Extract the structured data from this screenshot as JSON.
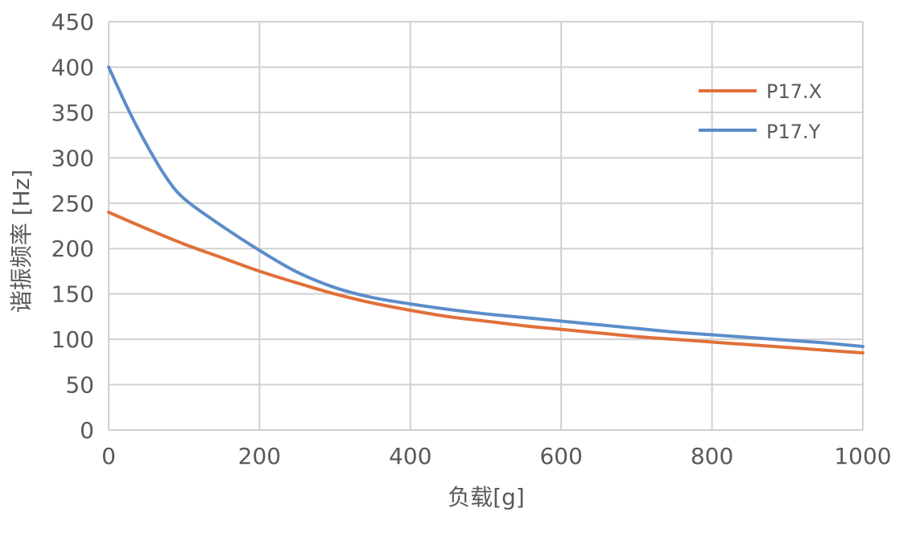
{
  "chart_data": {
    "type": "line",
    "title": "",
    "xlabel": "负载[g]",
    "ylabel": "谐振频率 [Hz]",
    "xlim": [
      0,
      1000
    ],
    "ylim": [
      0,
      450
    ],
    "xticks": [
      0,
      200,
      400,
      600,
      800,
      1000
    ],
    "yticks": [
      0,
      50,
      100,
      150,
      200,
      250,
      300,
      350,
      400,
      450
    ],
    "grid": true,
    "legend_position": "top-right",
    "series": [
      {
        "name": "P17.X",
        "color": "#E0703A",
        "x": [
          0,
          50,
          100,
          150,
          200,
          250,
          300,
          350,
          400,
          450,
          500,
          550,
          600,
          650,
          700,
          750,
          800,
          850,
          900,
          950,
          1000
        ],
        "y": [
          240,
          222,
          205,
          190,
          175,
          162,
          150,
          140,
          132,
          125,
          120,
          115,
          111,
          107,
          103,
          100,
          97,
          94,
          91,
          88,
          85
        ]
      },
      {
        "name": "P17.Y",
        "color": "#5B8DC9",
        "x": [
          0,
          25,
          50,
          75,
          100,
          150,
          200,
          250,
          300,
          350,
          400,
          450,
          500,
          550,
          600,
          650,
          700,
          750,
          800,
          850,
          900,
          950,
          1000
        ],
        "y": [
          400,
          355,
          315,
          280,
          255,
          225,
          198,
          174,
          157,
          146,
          139,
          133,
          128,
          124,
          120,
          116,
          112,
          108,
          105,
          102,
          99,
          96,
          92
        ]
      }
    ]
  }
}
